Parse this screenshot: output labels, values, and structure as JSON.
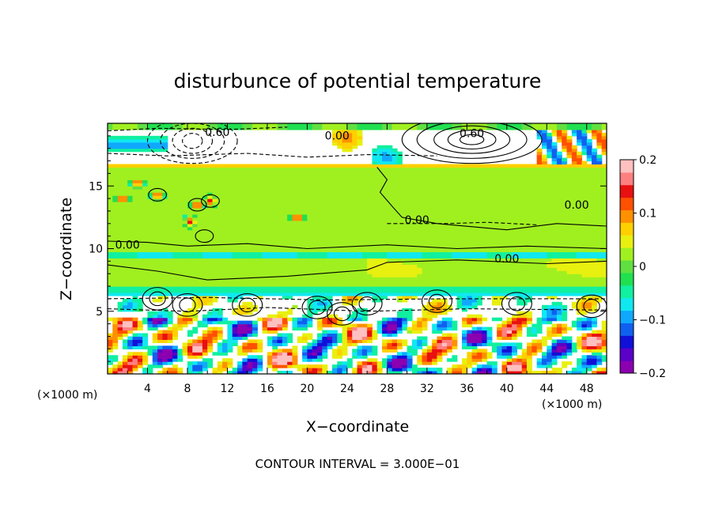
{
  "chart_data": {
    "type": "heatmap",
    "title": "disturbunce of potential temperature",
    "xlabel": "X−coordinate",
    "ylabel": "Z−coordinate",
    "x_unit": "(×1000 m)",
    "y_unit": "(×1000 m)",
    "xlim": [
      0,
      50
    ],
    "ylim": [
      0,
      20
    ],
    "x_ticks": [
      4,
      8,
      12,
      16,
      20,
      24,
      28,
      32,
      36,
      40,
      44,
      48
    ],
    "x_tick_labels": [
      "4",
      "8",
      "12",
      "16",
      "20",
      "24",
      "28",
      "32",
      "36",
      "40",
      "44",
      "48"
    ],
    "y_ticks": [
      5,
      10,
      15
    ],
    "y_tick_labels": [
      "5",
      "10",
      "15"
    ],
    "colorbar": {
      "min": -0.2,
      "max": 0.2,
      "ticks": [
        0.2,
        0.1,
        0,
        -0.1,
        -0.2
      ],
      "tick_labels": [
        "0.2",
        "0.1",
        "0",
        "−0.1",
        "−0.2"
      ],
      "colors": [
        "#8b00b0",
        "#5a00c8",
        "#1010d8",
        "#1060f0",
        "#10a8ff",
        "#10e8f0",
        "#10f0a0",
        "#20e050",
        "#60e040",
        "#a0f020",
        "#e8f010",
        "#ffd000",
        "#ff9000",
        "#ff5000",
        "#e81010",
        "#ff8080",
        "#ffc0c0"
      ]
    },
    "contour_interval": "CONTOUR INTERVAL = 3.000E−01",
    "contour_labels": [
      {
        "text": "0.60",
        "x": 11.0,
        "z": 19.0
      },
      {
        "text": "0.00",
        "x": 23.0,
        "z": 18.7
      },
      {
        "text": "0.60",
        "x": 36.5,
        "z": 18.9
      },
      {
        "text": "0.00",
        "x": 47.0,
        "z": 13.2
      },
      {
        "text": "0.00",
        "x": 31.0,
        "z": 12.0
      },
      {
        "text": "0.00",
        "x": 2.0,
        "z": 10.0
      },
      {
        "text": "0.00",
        "x": 40.0,
        "z": 8.9
      }
    ],
    "field_description_levels": [
      {
        "z_range": [
          16.5,
          20
        ],
        "value": 0.0,
        "note": "mostly neutral/white top layer"
      },
      {
        "z_range": [
          6.5,
          16.5
        ],
        "value": 0.02,
        "note": "green plateau"
      },
      {
        "z_range": [
          9.3,
          9.8
        ],
        "value": -0.06,
        "note": "thin cyan-blue band"
      },
      {
        "z_range": [
          0,
          6.5
        ],
        "value": 0.0,
        "note": "mixed positive/negative turbulent layer"
      }
    ]
  }
}
